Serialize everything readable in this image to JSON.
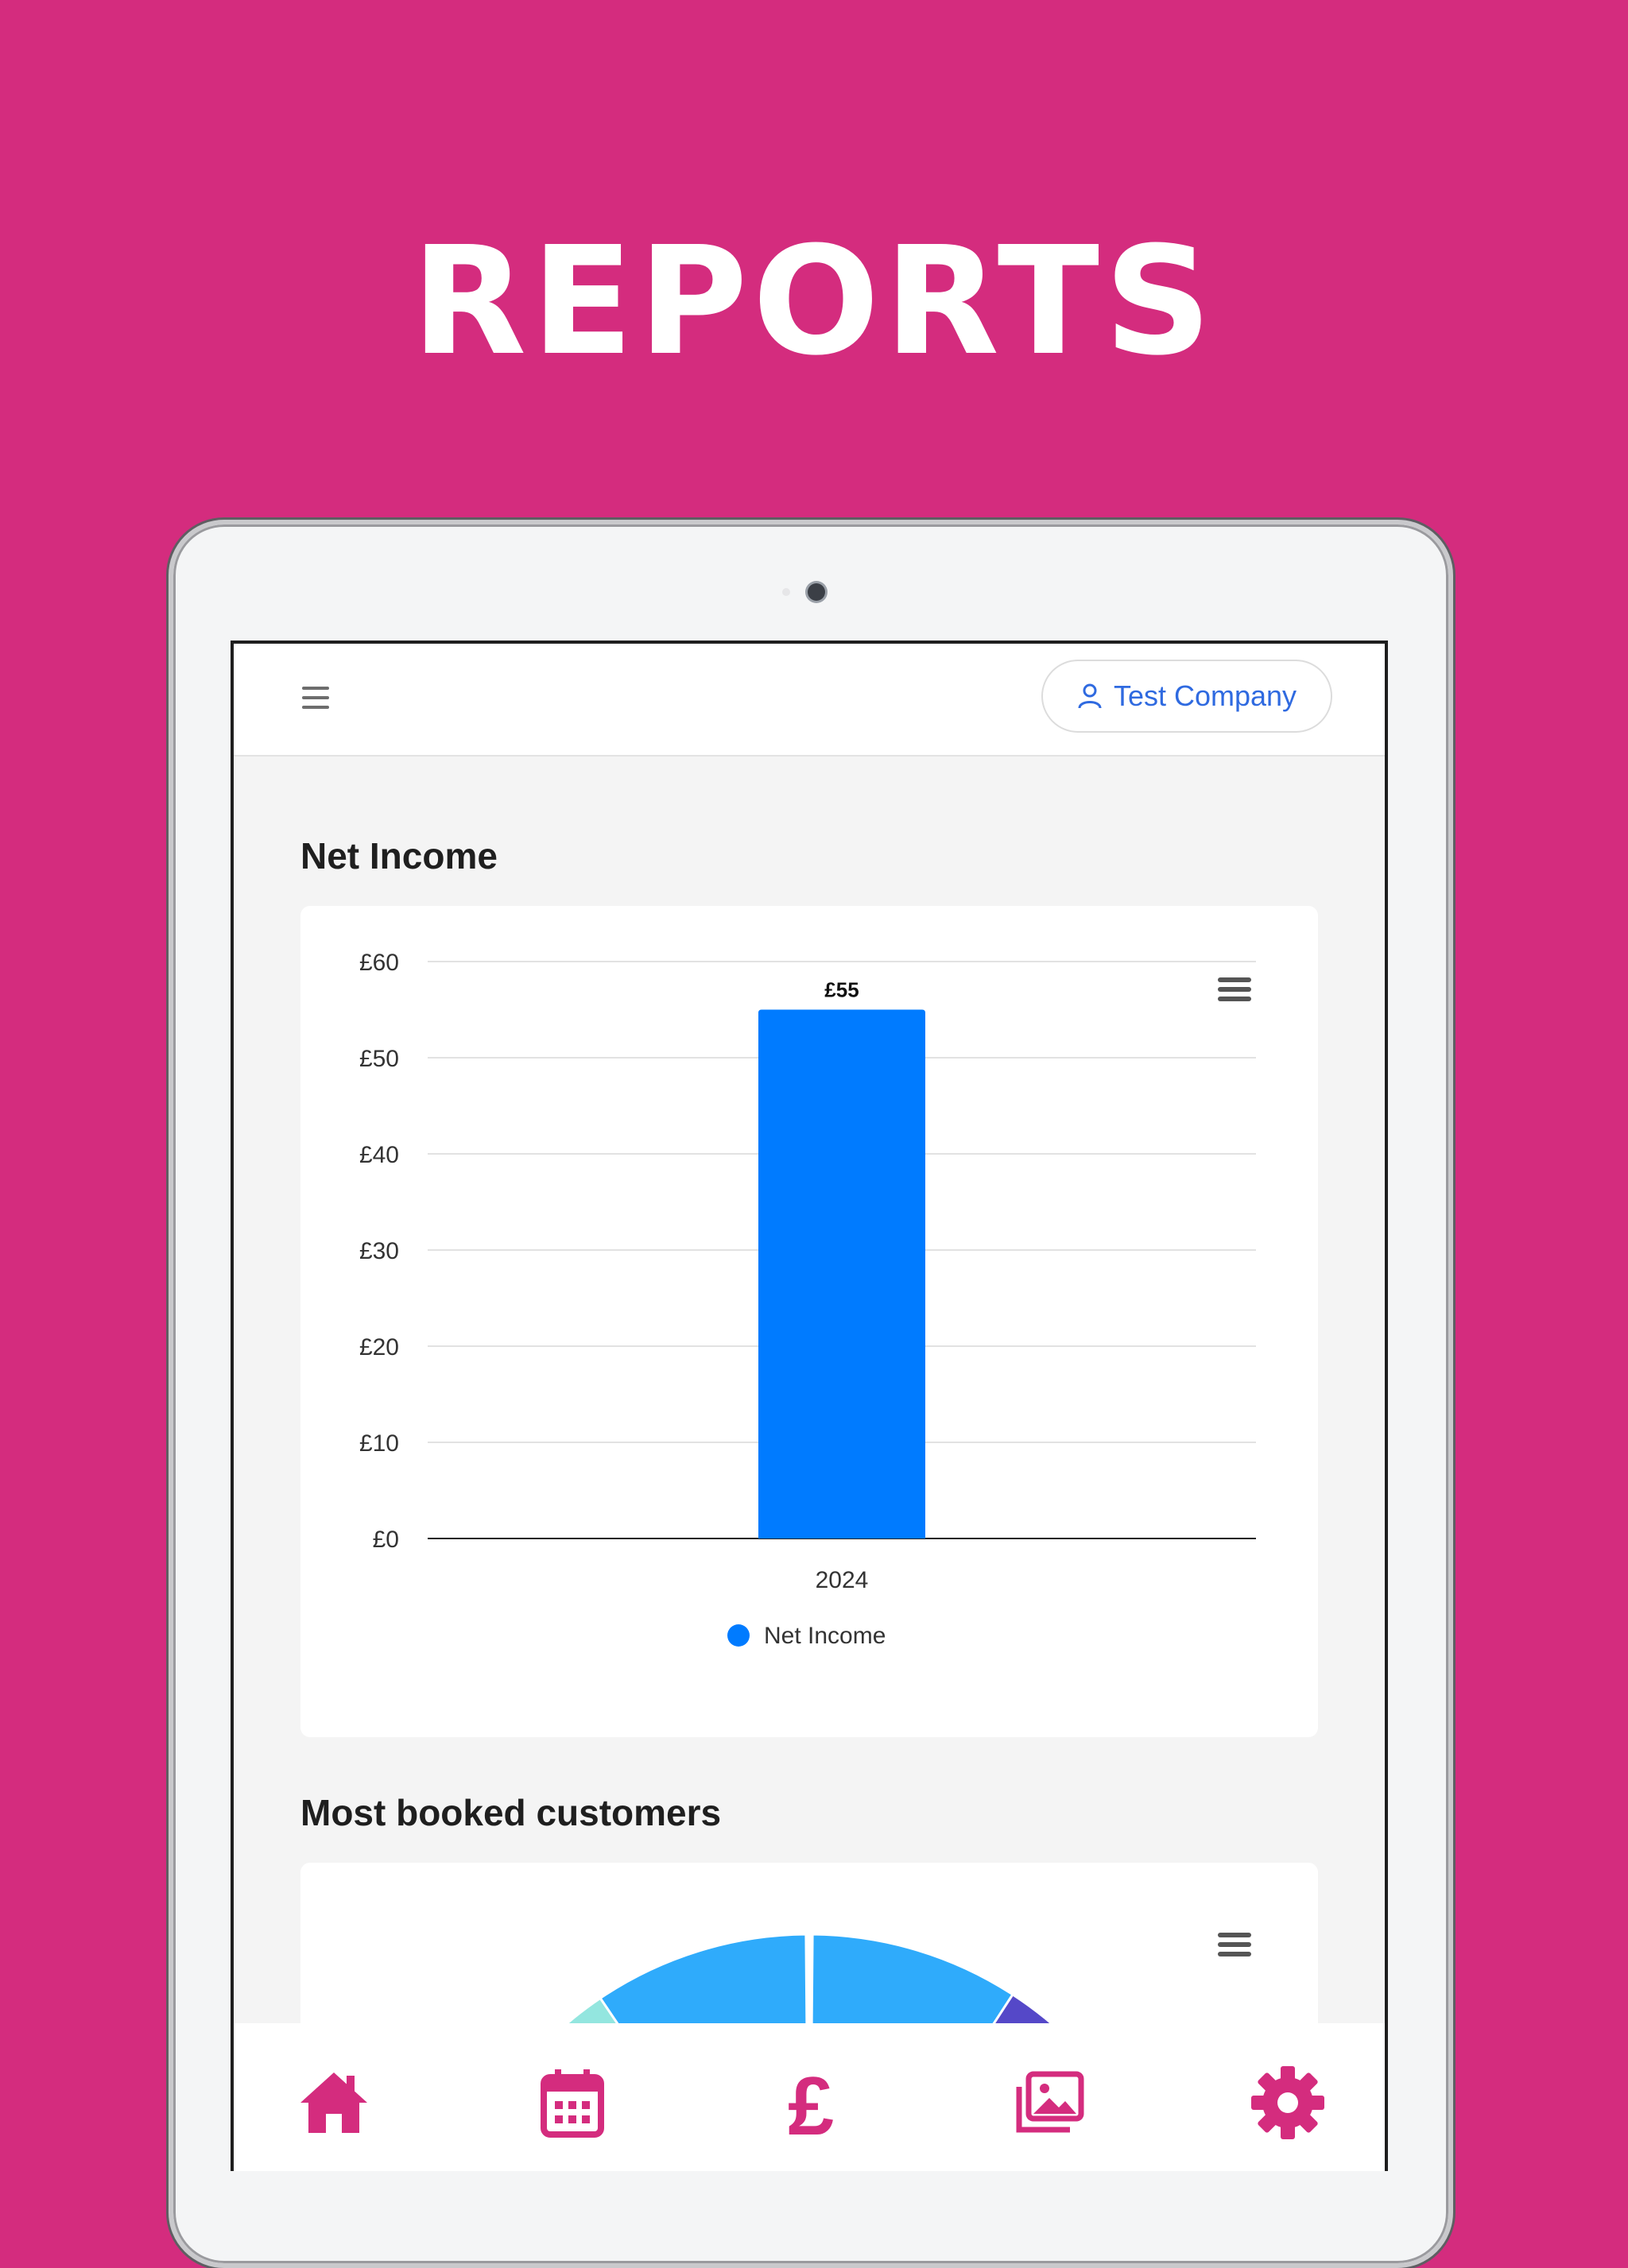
{
  "headline": "REPORTS",
  "header": {
    "company_label": "Test Company",
    "menu_icon": "hamburger-icon",
    "user_icon": "user-icon"
  },
  "sections": {
    "net_income": {
      "title": "Net Income"
    },
    "most_booked": {
      "title": "Most booked customers"
    }
  },
  "chart_data": [
    {
      "type": "bar",
      "categories": [
        "2024"
      ],
      "series": [
        {
          "name": "Net Income",
          "values": [
            55
          ],
          "color": "#007bff"
        }
      ],
      "data_labels": [
        "£55"
      ],
      "y_ticks": [
        "£0",
        "£10",
        "£20",
        "£30",
        "£40",
        "£50",
        "£60"
      ],
      "ylim": [
        0,
        60
      ],
      "grid": true,
      "legend": "bottom-center"
    },
    {
      "type": "pie",
      "slices": [
        {
          "color": "#93e6df"
        },
        {
          "color": "#2fabfb"
        },
        {
          "color": "#2fabfb"
        },
        {
          "color": "#5548c8"
        }
      ],
      "note": "partially visible, values not shown"
    }
  ],
  "colors": {
    "brand": "#d42c7e",
    "accent_blue": "#2f6ae0",
    "bar": "#007bff"
  },
  "bottom_nav": [
    {
      "name": "home",
      "icon": "home-icon"
    },
    {
      "name": "calendar",
      "icon": "calendar-icon"
    },
    {
      "name": "finance",
      "icon": "pound-icon"
    },
    {
      "name": "gallery",
      "icon": "gallery-icon"
    },
    {
      "name": "settings",
      "icon": "gear-icon"
    }
  ]
}
